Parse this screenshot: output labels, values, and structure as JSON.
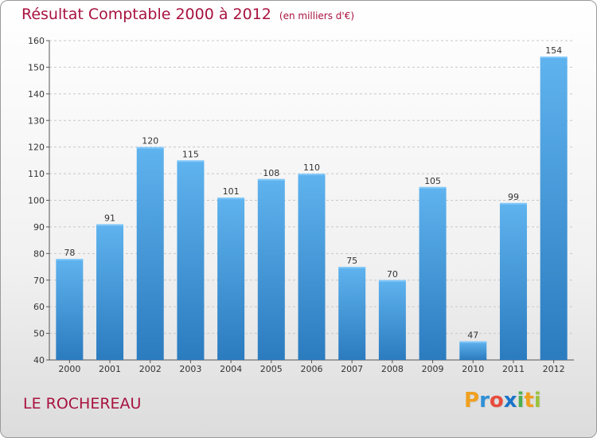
{
  "title": "Résultat Comptable 2000 à 2012",
  "subtitle": "(en milliers d'€)",
  "place_name": "LE ROCHEREAU",
  "brand": {
    "letters": [
      "P",
      "r",
      "o",
      "x",
      "i",
      "t",
      "i"
    ],
    "colors": [
      "#f0a01e",
      "#2e8fd6",
      "#e84c3d",
      "#1a74c8",
      "#4caf50",
      "#f0a01e",
      "#9bc33c"
    ]
  },
  "chart_data": {
    "type": "bar",
    "title": "Résultat Comptable 2000 à 2012",
    "subtitle": "(en milliers d'€)",
    "xlabel": "",
    "ylabel": "",
    "categories": [
      "2000",
      "2001",
      "2002",
      "2003",
      "2004",
      "2005",
      "2006",
      "2007",
      "2008",
      "2009",
      "2010",
      "2011",
      "2012"
    ],
    "values": [
      78,
      91,
      120,
      115,
      101,
      108,
      110,
      75,
      70,
      105,
      47,
      99,
      154
    ],
    "ylim": [
      40,
      160
    ],
    "yticks": [
      40,
      50,
      60,
      70,
      80,
      90,
      100,
      110,
      120,
      130,
      140,
      150,
      160
    ],
    "grid": true,
    "bar_color": "#3f97d9"
  }
}
